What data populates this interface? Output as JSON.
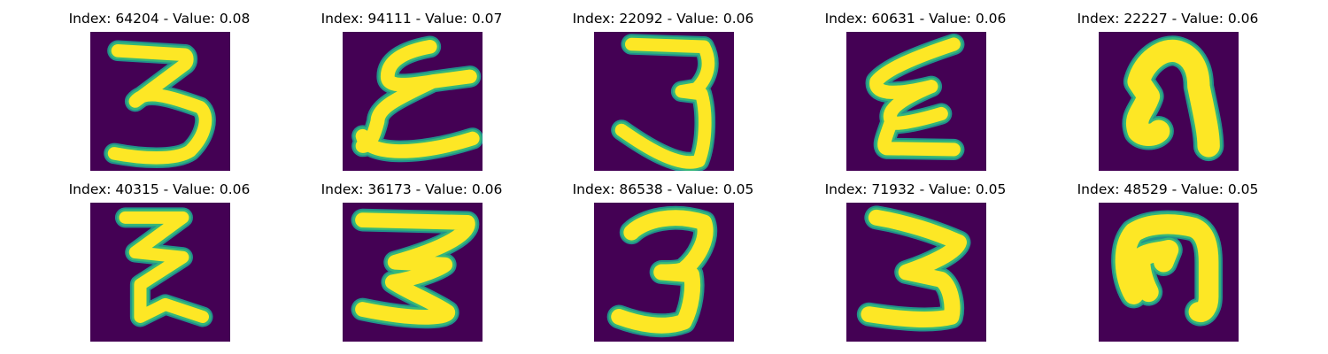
{
  "panels": [
    {
      "title": "Index: 64204 - Value: 0.08",
      "index": 64204,
      "value": 0.08,
      "glyph": "three-a"
    },
    {
      "title": "Index: 94111 - Value: 0.07",
      "index": 94111,
      "value": 0.07,
      "glyph": "epsilon-a"
    },
    {
      "title": "Index: 22092 - Value: 0.06",
      "index": 22092,
      "value": 0.06,
      "glyph": "three-b"
    },
    {
      "title": "Index: 60631 - Value: 0.06",
      "index": 60631,
      "value": 0.06,
      "glyph": "epsilon-b"
    },
    {
      "title": "Index: 22227 - Value: 0.06",
      "index": 22227,
      "value": 0.06,
      "glyph": "hook-a"
    },
    {
      "title": "Index: 40315 - Value: 0.06",
      "index": 40315,
      "value": 0.06,
      "glyph": "zigzag"
    },
    {
      "title": "Index: 36173 - Value: 0.06",
      "index": 36173,
      "value": 0.06,
      "glyph": "three-c"
    },
    {
      "title": "Index: 86538 - Value: 0.05",
      "index": 86538,
      "value": 0.05,
      "glyph": "three-d"
    },
    {
      "title": "Index: 71932 - Value: 0.05",
      "index": 71932,
      "value": 0.05,
      "glyph": "three-e"
    },
    {
      "title": "Index: 48529 - Value: 0.05",
      "index": 48529,
      "value": 0.05,
      "glyph": "hook-b"
    }
  ],
  "colors": {
    "background": "#440154",
    "stroke_core": "#fde725",
    "stroke_edge": "#35b779",
    "stroke_halo": "#21918c"
  }
}
